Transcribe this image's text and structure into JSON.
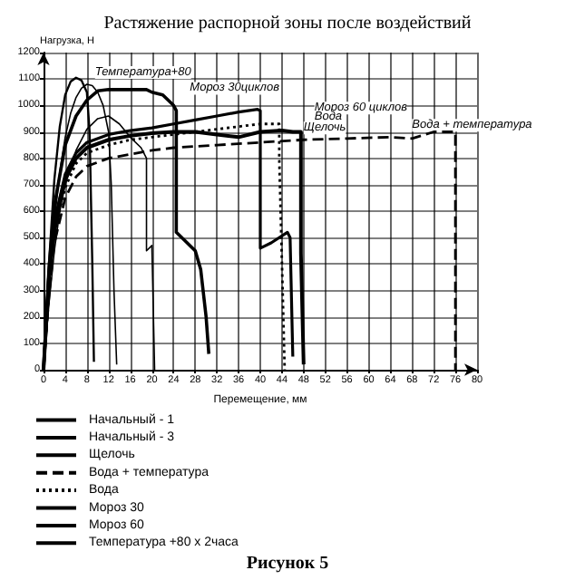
{
  "chart_data": {
    "type": "line",
    "title": "Растяжение распорной зоны после воздействий",
    "xlabel": "Перемещение, мм",
    "ylabel": "Нагрузка, Н",
    "xlim": [
      0,
      80
    ],
    "xticks": [
      0,
      4,
      8,
      12,
      16,
      20,
      24,
      28,
      32,
      36,
      40,
      44,
      48,
      52,
      56,
      60,
      64,
      68,
      72,
      76,
      80
    ],
    "ylim": [
      0,
      1200
    ],
    "yticks": [
      0,
      100,
      200,
      300,
      400,
      500,
      600,
      700,
      800,
      900,
      1000,
      1100,
      1200
    ],
    "grid": true,
    "legend": "bottom left",
    "marker": "none",
    "series": [
      {
        "name": "Начальный - 1",
        "color": "#000000",
        "line_style": "solid",
        "x": [
          0,
          1,
          2,
          3,
          4,
          5,
          6,
          7,
          8,
          9,
          10,
          11,
          12,
          12.5,
          13,
          13.5
        ],
        "values": [
          0,
          300,
          560,
          750,
          880,
          970,
          1030,
          1065,
          1080,
          1075,
          1050,
          1000,
          900,
          700,
          300,
          20
        ]
      },
      {
        "name": "Начальный - 3",
        "color": "#000000",
        "line_style": "solid",
        "x": [
          0,
          1,
          2,
          3,
          4,
          6,
          8,
          10,
          12,
          14,
          16,
          18,
          19,
          19,
          20,
          20,
          20.5
        ],
        "values": [
          0,
          250,
          450,
          600,
          700,
          830,
          910,
          950,
          960,
          930,
          880,
          840,
          800,
          450,
          470,
          460,
          0
        ]
      },
      {
        "name": "Щелочь",
        "color": "#000000",
        "line_style": "solid",
        "x": [
          0,
          1,
          2,
          3,
          4,
          6,
          8,
          12,
          16,
          20,
          24,
          28,
          32,
          36,
          40,
          44,
          46,
          47.5,
          47.5,
          48
        ],
        "values": [
          0,
          350,
          520,
          640,
          720,
          800,
          840,
          870,
          885,
          895,
          900,
          900,
          890,
          880,
          900,
          905,
          900,
          900,
          440,
          20
        ]
      },
      {
        "name": "Вода + температура",
        "color": "#000000",
        "line_style": "dashed",
        "x": [
          0,
          1,
          2,
          4,
          6,
          8,
          12,
          16,
          20,
          24,
          28,
          32,
          40,
          48,
          56,
          64,
          68,
          72,
          74,
          76,
          76
        ],
        "values": [
          0,
          280,
          480,
          650,
          730,
          770,
          800,
          815,
          830,
          840,
          845,
          850,
          860,
          870,
          875,
          880,
          875,
          900,
          900,
          900,
          0
        ]
      },
      {
        "name": "Вода",
        "color": "#000000",
        "line_style": "dotted",
        "x": [
          0,
          1,
          2,
          4,
          6,
          8,
          12,
          16,
          20,
          24,
          28,
          32,
          36,
          40,
          43.5,
          43.5,
          44.5
        ],
        "values": [
          0,
          300,
          520,
          690,
          780,
          820,
          850,
          870,
          880,
          890,
          900,
          910,
          920,
          930,
          930,
          800,
          0
        ]
      },
      {
        "name": "Мороз 30",
        "color": "#000000",
        "line_style": "solid",
        "x": [
          0,
          1,
          2,
          4,
          6,
          8,
          10,
          12,
          16,
          19,
          20,
          22,
          24,
          24.5,
          24.5,
          26,
          28,
          29,
          30,
          30.5
        ],
        "values": [
          0,
          380,
          620,
          850,
          960,
          1020,
          1055,
          1060,
          1060,
          1060,
          1050,
          1040,
          1000,
          980,
          520,
          490,
          450,
          380,
          200,
          60
        ]
      },
      {
        "name": "Мороз 60",
        "color": "#000000",
        "line_style": "solid",
        "x": [
          0,
          1,
          2,
          4,
          6,
          8,
          12,
          16,
          20,
          24,
          28,
          32,
          36,
          39.5,
          40,
          40,
          42,
          45,
          45.5,
          46
        ],
        "values": [
          0,
          350,
          560,
          740,
          820,
          860,
          890,
          905,
          915,
          930,
          945,
          960,
          975,
          985,
          980,
          460,
          480,
          520,
          500,
          50
        ]
      },
      {
        "name": "Температура +80 х 2часа",
        "color": "#000000",
        "line_style": "solid",
        "x": [
          0,
          1,
          2,
          3,
          4,
          5,
          6,
          7,
          8,
          8.5,
          9,
          9.3
        ],
        "values": [
          0,
          400,
          720,
          920,
          1040,
          1090,
          1105,
          1095,
          1050,
          900,
          400,
          30
        ]
      }
    ],
    "annotations": [
      "Температура+80",
      "Мороз 30циклов",
      "Мороз 60 циклов",
      "Вода",
      "Щелочь",
      "Вода + температура",
      "Рисунок 5"
    ]
  }
}
